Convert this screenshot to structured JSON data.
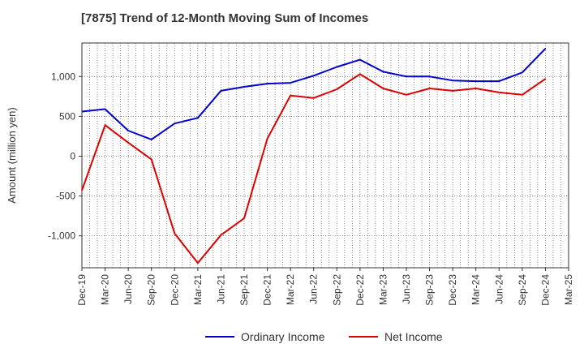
{
  "chart_data": {
    "type": "line",
    "title": "[7875]  Trend of 12-Month Moving Sum of Incomes",
    "ylabel": "Amount (million yen)",
    "xlabel": "",
    "categories": [
      "Dec-19",
      "Mar-20",
      "Jun-20",
      "Sep-20",
      "Dec-20",
      "Mar-21",
      "Jun-21",
      "Sep-21",
      "Dec-21",
      "Mar-22",
      "Jun-22",
      "Sep-22",
      "Dec-22",
      "Mar-23",
      "Jun-23",
      "Sep-23",
      "Dec-23",
      "Mar-24",
      "Jun-24",
      "Sep-24",
      "Dec-24",
      "Mar-25"
    ],
    "y_ticks": [
      {
        "value": 1000,
        "label": "1,000"
      },
      {
        "value": 500,
        "label": "500"
      },
      {
        "value": 0,
        "label": "0"
      },
      {
        "value": -500,
        "label": "-500"
      },
      {
        "value": -1000,
        "label": "-1,000"
      }
    ],
    "ylim": [
      -1400,
      1420
    ],
    "grid": true,
    "legend_position": "bottom",
    "series": [
      {
        "name": "Ordinary Income",
        "color": "#0000cc",
        "values": [
          560,
          590,
          320,
          210,
          410,
          480,
          820,
          870,
          910,
          920,
          1010,
          1120,
          1210,
          1060,
          1000,
          1000,
          950,
          940,
          940,
          1050,
          1350,
          null
        ]
      },
      {
        "name": "Net Income",
        "color": "#dd0000",
        "values": [
          -430,
          390,
          170,
          -40,
          -970,
          -1340,
          -990,
          -780,
          220,
          760,
          730,
          840,
          1030,
          850,
          770,
          850,
          820,
          850,
          800,
          770,
          970,
          null
        ]
      }
    ]
  }
}
